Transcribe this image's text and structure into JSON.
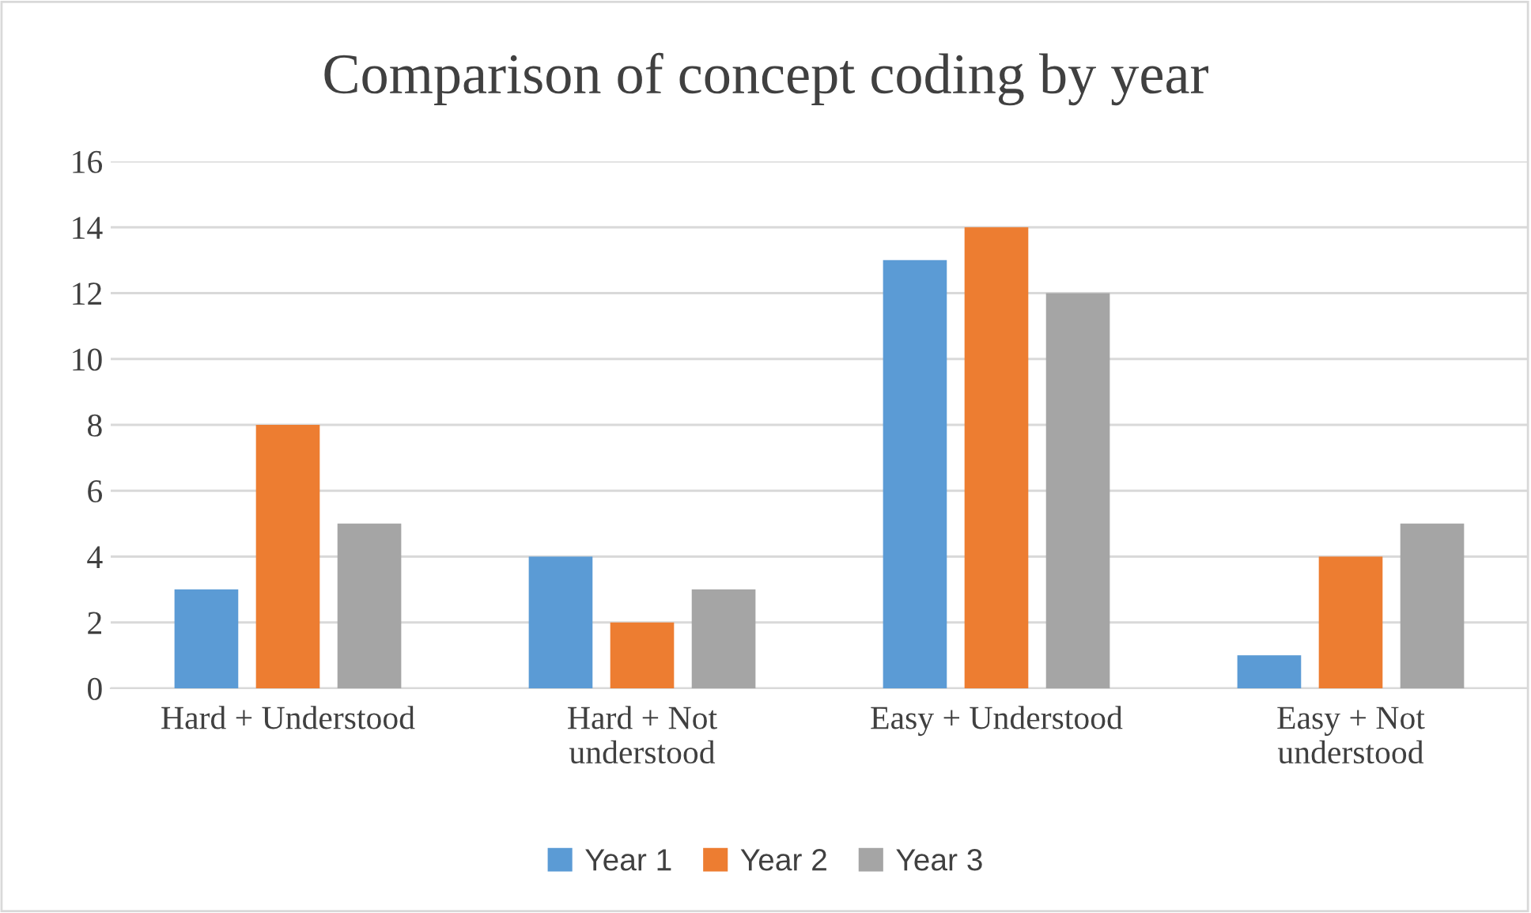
{
  "chart_data": {
    "type": "bar",
    "title": "Comparison of concept coding by year",
    "categories": [
      "Hard + Understood",
      "Hard + Not\nunderstood",
      "Easy + Understood",
      "Easy + Not\nunderstood"
    ],
    "series": [
      {
        "name": "Year 1",
        "color": "#5b9bd5",
        "values": [
          3,
          4,
          13,
          1
        ]
      },
      {
        "name": "Year 2",
        "color": "#ed7d31",
        "values": [
          8,
          2,
          14,
          4
        ]
      },
      {
        "name": "Year 3",
        "color": "#a5a5a5",
        "values": [
          5,
          3,
          12,
          5
        ]
      }
    ],
    "ylim": [
      0,
      16
    ],
    "yticks": [
      0,
      2,
      4,
      6,
      8,
      10,
      12,
      14,
      16
    ],
    "grid": "y",
    "legend": "bottom"
  }
}
